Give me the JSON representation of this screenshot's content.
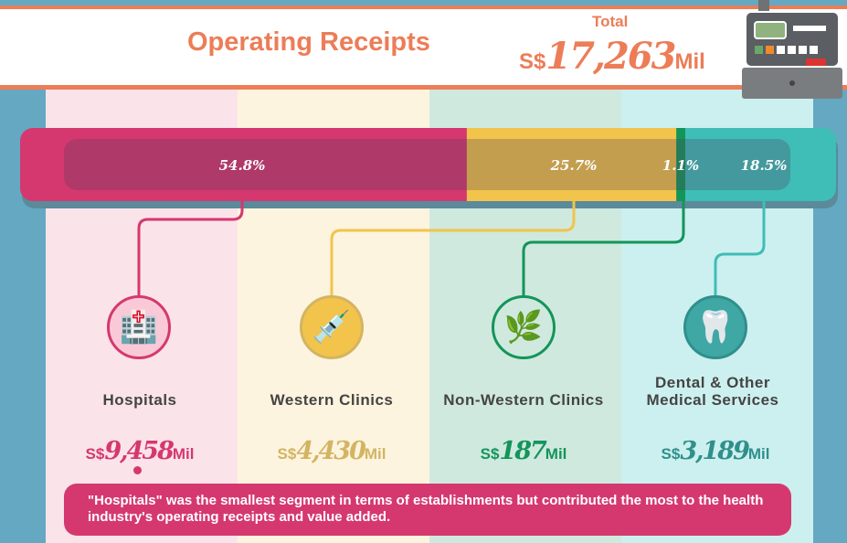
{
  "header": {
    "title": "Operating Receipts",
    "total_label": "Total",
    "total_prefix": "S$",
    "total_value": "17,263",
    "total_suffix": "Mil"
  },
  "chart_data": {
    "type": "bar",
    "orientation": "horizontal-stacked",
    "title": "Operating Receipts",
    "categories": [
      "Hospitals",
      "Western Clinics",
      "Non-Western Clinics",
      "Dental & Other Medical Services"
    ],
    "values": [
      54.8,
      25.7,
      1.1,
      18.5
    ],
    "value_labels": [
      "54.8%",
      "25.7%",
      "1.1%",
      "18.5%"
    ],
    "amounts_mil": [
      9458,
      4430,
      187,
      3189
    ],
    "colors": [
      "#d5386f",
      "#f2c44b",
      "#13955a",
      "#3fbdb7"
    ]
  },
  "segments": [
    {
      "name": "Hospitals",
      "prefix": "S$",
      "amount": "9,458",
      "suffix": "Mil",
      "color": "#d5386f",
      "icon": "hospital-icon"
    },
    {
      "name": "Western Clinics",
      "prefix": "S$",
      "amount": "4,430",
      "suffix": "Mil",
      "color": "#d3b462",
      "icon": "syringe-icon"
    },
    {
      "name": "Non-Western Clinics",
      "prefix": "S$",
      "amount": "187",
      "suffix": "Mil",
      "color": "#13955a",
      "icon": "mortar-pestle-icon"
    },
    {
      "name": "Dental & Other Medical Services",
      "prefix": "S$",
      "amount": "3,189",
      "suffix": "Mil",
      "color": "#2f8f8c",
      "icon": "tooth-icon"
    }
  ],
  "note": "\"Hospitals\" was the smallest segment in terms of establishments but contributed the most to the health industry's operating receipts and value added."
}
